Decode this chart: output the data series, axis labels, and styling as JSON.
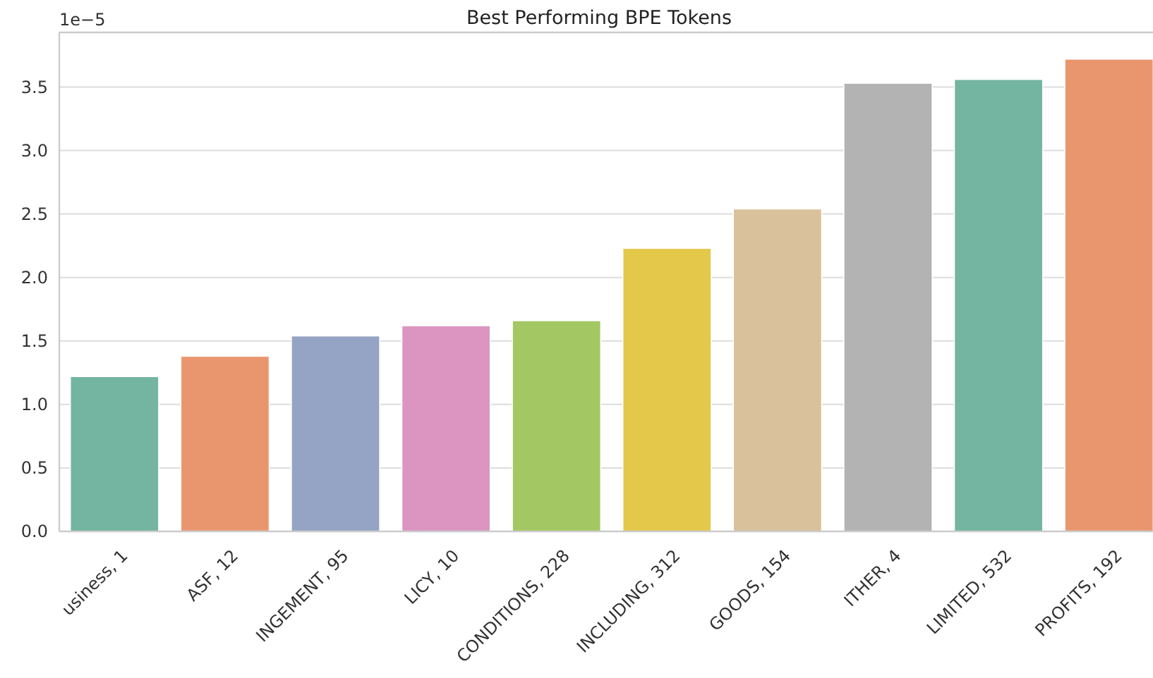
{
  "chart_data": {
    "type": "bar",
    "title": "Best Performing BPE Tokens",
    "categories": [
      "usiness, 1",
      "ASF, 12",
      "INGEMENT, 95",
      "LICY, 10",
      "CONDITIONS, 228",
      "INCLUDING, 312",
      "GOODS, 154",
      "ITHER, 4",
      "LIMITED, 532",
      "PROFITS, 192"
    ],
    "values": [
      1.22,
      1.38,
      1.54,
      1.62,
      1.66,
      2.23,
      2.54,
      3.53,
      3.56,
      3.72
    ],
    "colors": [
      "#73b5a0",
      "#e9966f",
      "#95a4c4",
      "#db95c0",
      "#a3c763",
      "#e3c84a",
      "#d9c19b",
      "#b3b3b3",
      "#73b5a0",
      "#e9966f"
    ],
    "ylim": [
      0,
      3.93
    ],
    "yticks": [
      {
        "value": 0,
        "label": "0.0"
      },
      0.5,
      {
        "value": 1,
        "label": "1.0"
      },
      1.5,
      {
        "value": 2,
        "label": "2.0"
      },
      2.5,
      {
        "value": 3,
        "label": "3.0"
      },
      3.5
    ],
    "annotations": [
      "1e−5"
    ],
    "grid": "y"
  }
}
